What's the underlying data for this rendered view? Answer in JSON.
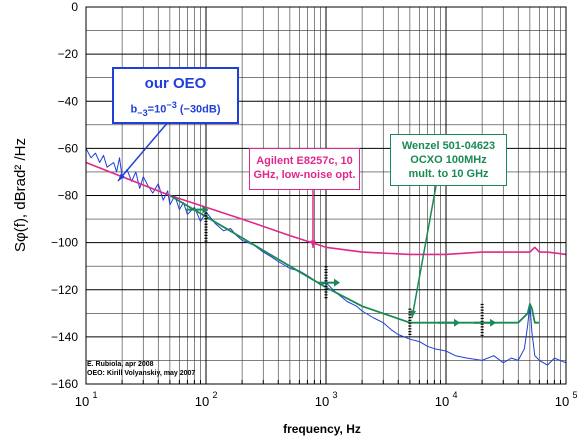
{
  "chart_data": {
    "type": "line",
    "xscale": "log",
    "xlim": [
      10,
      100000
    ],
    "ylim": [
      -160,
      0
    ],
    "grid": true,
    "xlabel": "frequency, Hz",
    "ylabel": "Sφ(f), dBrad² /Hz",
    "x_ticks": [
      {
        "base": "10",
        "exp": "1"
      },
      {
        "base": "10",
        "exp": "2"
      },
      {
        "base": "10",
        "exp": "3"
      },
      {
        "base": "10",
        "exp": "4"
      },
      {
        "base": "10",
        "exp": "5"
      }
    ],
    "y_ticks": [
      "0",
      "−20",
      "−40",
      "−60",
      "−80",
      "−100",
      "−120",
      "−140",
      "−160"
    ],
    "y_tick_values": [
      0,
      -20,
      -40,
      -60,
      -80,
      -100,
      -120,
      -140,
      -160
    ],
    "series": [
      {
        "color": "#1f3fd8",
        "x": [
          10,
          11,
          12,
          13,
          14,
          15,
          17,
          18,
          19,
          20,
          22,
          24,
          26,
          28,
          30,
          33,
          36,
          40,
          44,
          48,
          50,
          55,
          60,
          65,
          70,
          80,
          90,
          100,
          120,
          140,
          160,
          180,
          200,
          250,
          300,
          350,
          400,
          500,
          600,
          700,
          800,
          900,
          1000,
          1200,
          1500,
          1800,
          2000,
          2500,
          3000,
          3500,
          4000,
          5000,
          6000,
          7000,
          8000,
          10000,
          12000,
          15000,
          20000,
          25000,
          30000,
          35000,
          40000,
          45000,
          48000,
          50000,
          52000,
          55000,
          60000,
          70000,
          80000,
          100000
        ],
        "y": [
          -60,
          -64,
          -62,
          -66,
          -63,
          -68,
          -66,
          -70,
          -64,
          -72,
          -69,
          -74,
          -70,
          -77,
          -72,
          -76,
          -79,
          -75,
          -82,
          -78,
          -84,
          -80,
          -86,
          -83,
          -88,
          -85,
          -91,
          -87,
          -92,
          -95,
          -94,
          -97,
          -99,
          -101,
          -104,
          -106,
          -108,
          -111,
          -112,
          -114,
          -116,
          -118,
          -117,
          -121,
          -125,
          -127,
          -129,
          -132,
          -134,
          -137,
          -139,
          -141,
          -142,
          -144,
          -145,
          -146,
          -148,
          -149,
          -150,
          -148,
          -151,
          -149,
          -150,
          -145,
          -135,
          -126,
          -138,
          -148,
          -150,
          -152,
          -149,
          -151
        ]
      },
      {
        "color": "#e0288a",
        "x": [
          10,
          20,
          50,
          100,
          200,
          500,
          1000,
          2000,
          5000,
          10000,
          20000,
          30000,
          50000,
          55000,
          60000,
          70000,
          100000
        ],
        "y": [
          -66,
          -72,
          -80,
          -85,
          -90,
          -97,
          -102,
          -104,
          -105,
          -105,
          -104,
          -104,
          -104,
          -102,
          -104,
          -104,
          -105
        ]
      },
      {
        "color": "#1a8a55",
        "x": [
          50,
          100,
          200,
          500,
          1000,
          2000,
          5000,
          10000,
          20000,
          40000,
          48000,
          50000,
          52000,
          55000,
          60000
        ],
        "y": [
          -80,
          -89,
          -98,
          -110,
          -119,
          -127,
          -134,
          -134,
          -134,
          -134,
          -130,
          -126,
          -128,
          -134,
          -134
        ]
      }
    ],
    "annotations": [
      {
        "line1": "our OEO",
        "line2_prefix": "b",
        "line2_sub": "−3",
        "line2_mid": "=10",
        "line2_sup": "−3",
        "line2_suffix": " (−30dB)"
      },
      {
        "lines": [
          "Agilent E8257c, 10",
          "GHz, low-noise opt."
        ]
      },
      {
        "lines": [
          "Wenzel 501-04623",
          "OCXO 100MHz",
          "mult. to 10 GHz"
        ]
      }
    ],
    "credits": [
      "E. Rubiola, apr 2008",
      "OEO: Kirill Volyanskiy, may 2007"
    ]
  }
}
